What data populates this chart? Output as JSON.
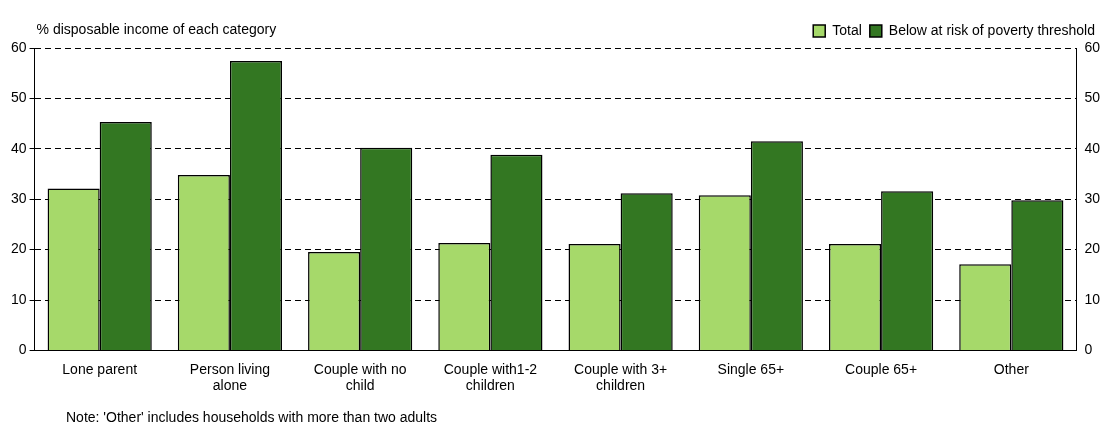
{
  "chart_data": {
    "type": "bar",
    "ylabel": "% disposable income of each category",
    "categories": [
      "Lone parent",
      "Person living alone",
      "Couple with no child",
      "Couple with1-2 children",
      "Couple with 3+ children",
      "Single 65+",
      "Couple 65+",
      "Other"
    ],
    "series": [
      {
        "name": "Total",
        "color": "#a6d96a",
        "values": [
          32.1,
          34.8,
          19.5,
          21.3,
          21.1,
          30.8,
          21.1,
          17.1
        ]
      },
      {
        "name": "Below at risk of poverty threshold",
        "color": "#337722",
        "values": [
          45.3,
          57.4,
          40.2,
          38.8,
          31.2,
          41.5,
          31.6,
          29.8
        ]
      }
    ],
    "ylim": [
      0,
      60
    ],
    "yticks": [
      0,
      10,
      20,
      30,
      40,
      50,
      60
    ],
    "y2lim": [
      0,
      60
    ],
    "y2ticks": [
      0,
      10,
      20,
      30,
      40,
      50,
      60
    ],
    "grid": "y",
    "legend": "top right",
    "annotations": [
      "Note: 'Other' includes households with more than two adults"
    ]
  }
}
